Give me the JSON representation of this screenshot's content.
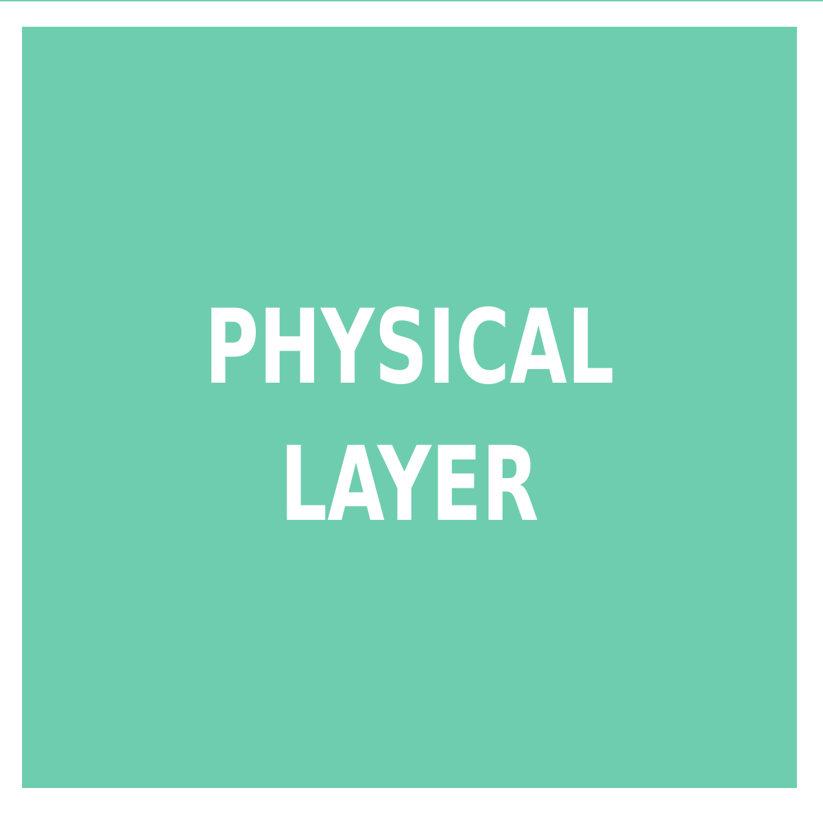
{
  "tile": {
    "title_line_1": "PHYSICAL",
    "title_line_2": "LAYER"
  },
  "colors": {
    "tile_background": "#6fcdaf",
    "text": "#ffffff",
    "page_background": "#ffffff"
  }
}
